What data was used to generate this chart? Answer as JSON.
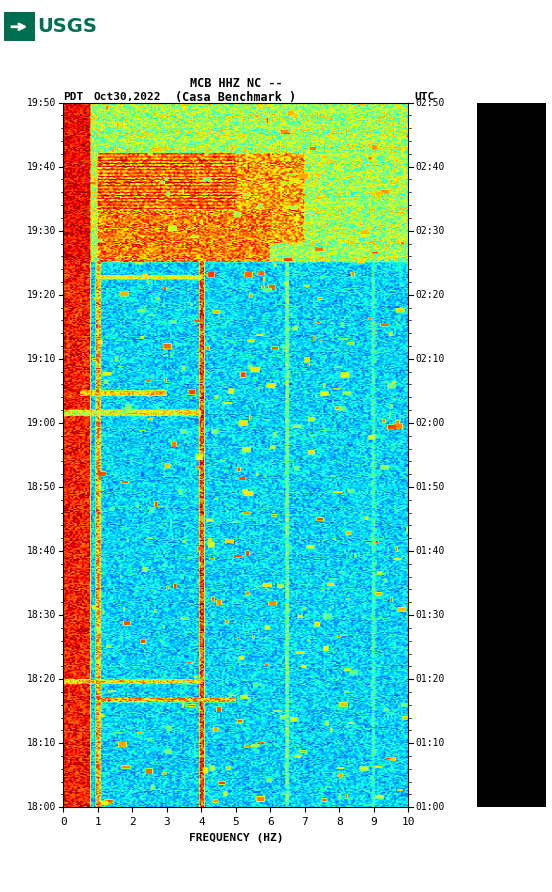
{
  "title_line1": "MCB HHZ NC --",
  "title_line2": "(Casa Benchmark )",
  "date_label": "Oct30,2022",
  "left_tz": "PDT",
  "right_tz": "UTC",
  "left_times": [
    "18:00",
    "18:10",
    "18:20",
    "18:30",
    "18:40",
    "18:50",
    "19:00",
    "19:10",
    "19:20",
    "19:30",
    "19:40",
    "19:50"
  ],
  "right_times": [
    "01:00",
    "01:10",
    "01:20",
    "01:30",
    "01:40",
    "01:50",
    "02:00",
    "02:10",
    "02:20",
    "02:30",
    "02:40",
    "02:50"
  ],
  "freq_min": 0,
  "freq_max": 10,
  "freq_label": "FREQUENCY (HZ)",
  "freq_ticks": [
    0,
    1,
    2,
    3,
    4,
    5,
    6,
    7,
    8,
    9,
    10
  ],
  "bg_color": "#ffffff",
  "black_panel_color": "#000000",
  "usgs_green": "#006E51",
  "seed": 42,
  "fig_width": 5.52,
  "fig_height": 8.92,
  "dpi": 100
}
